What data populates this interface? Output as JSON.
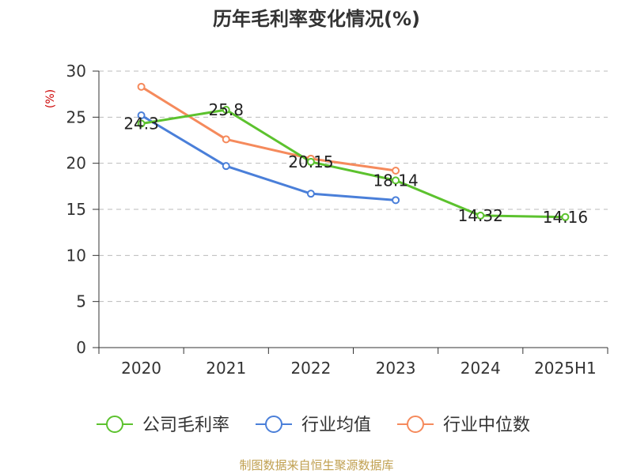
{
  "chart_data": {
    "type": "line",
    "title": "历年毛利率变化情况(%)",
    "ylabel": "(%)",
    "ylim": [
      0,
      30
    ],
    "yticks": [
      0,
      5,
      10,
      15,
      20,
      25,
      30
    ],
    "categories": [
      "2020",
      "2021",
      "2022",
      "2023",
      "2024",
      "2025H1"
    ],
    "grid": true,
    "legend_position": "bottom",
    "series": [
      {
        "name": "公司毛利率",
        "color": "#5cc22e",
        "values": [
          24.3,
          25.8,
          20.15,
          18.14,
          14.32,
          14.16
        ],
        "labels": [
          "24.3",
          "25.8",
          "20.15",
          "18.14",
          "14.32",
          "14.16"
        ]
      },
      {
        "name": "行业均值",
        "color": "#4a7fd9",
        "values": [
          25.2,
          19.7,
          16.7,
          16.0,
          null,
          null
        ]
      },
      {
        "name": "行业中位数",
        "color": "#f58a5c",
        "values": [
          28.3,
          22.6,
          20.5,
          19.2,
          null,
          null
        ]
      }
    ]
  },
  "footer": {
    "source": "制图数据来自恒生聚源数据库"
  }
}
